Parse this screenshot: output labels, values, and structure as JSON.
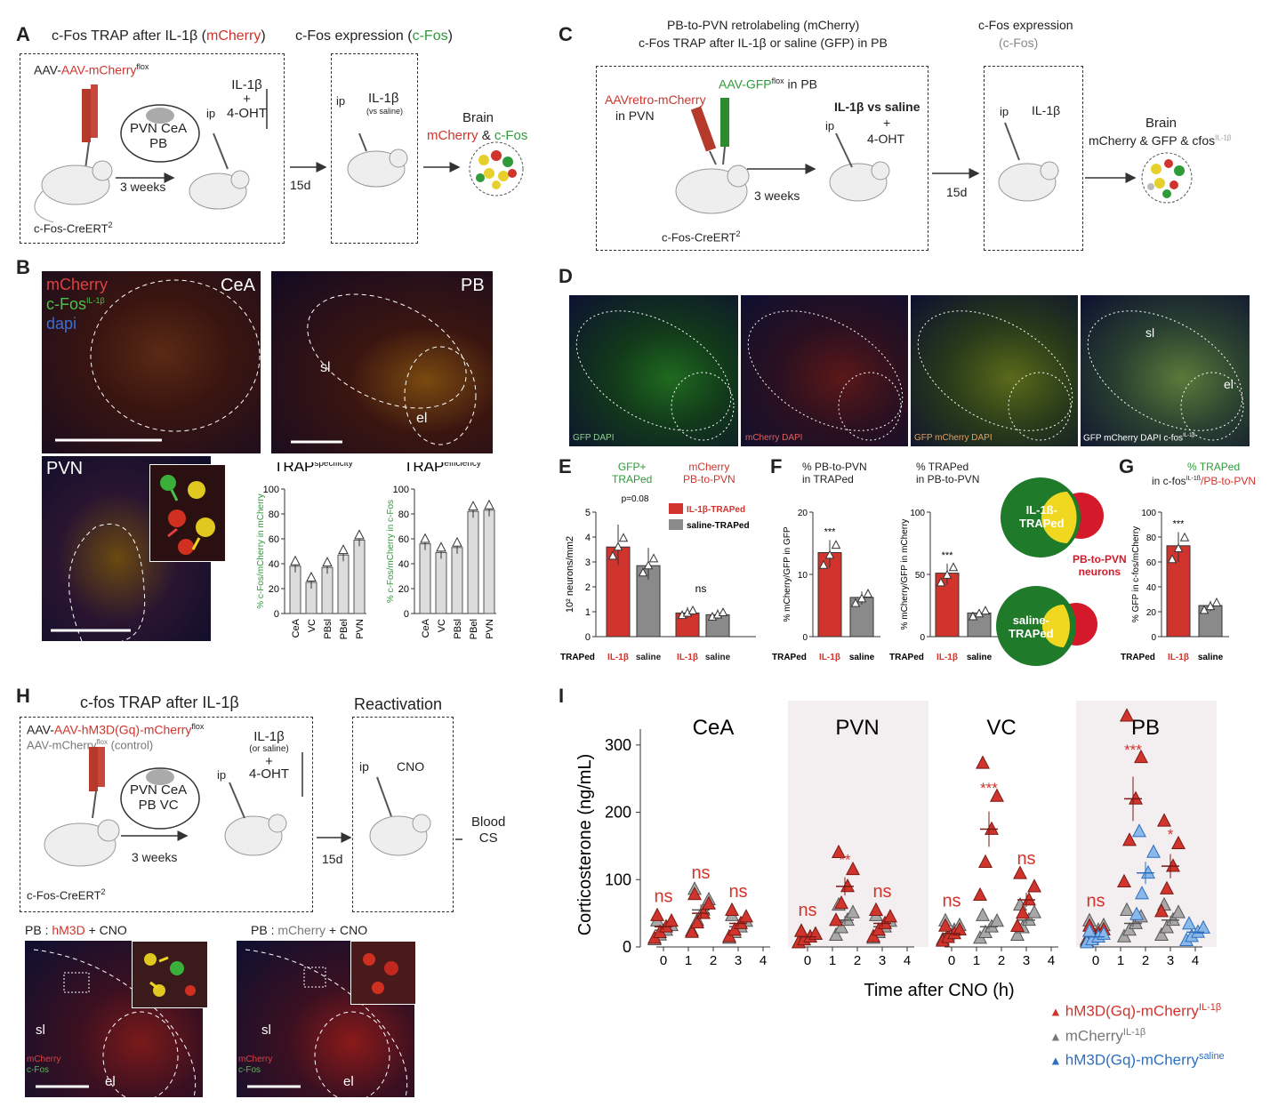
{
  "figure": {
    "panel_labels": [
      "A",
      "B",
      "C",
      "D",
      "E",
      "F",
      "G",
      "H",
      "I"
    ],
    "A": {
      "title_trap": "c-Fos TRAP after IL-1β (",
      "title_trap_red": "mCherry",
      "title_expr": "c-Fos expression (",
      "title_expr_green": "c-Fos",
      "virus": "AAV-mCherry",
      "virus_sup": "flox",
      "regions": [
        "PVN CeA",
        "PB"
      ],
      "treat": [
        "IL-1β",
        "+",
        "4-OHT"
      ],
      "ip": "ip",
      "inject2": "IL-1β",
      "inject2_sub": "(vs saline)",
      "weeks": "3 weeks",
      "days": "15d",
      "brain": "Brain",
      "brain_red": "mCherry",
      "brain_amp": "&",
      "brain_green": "c-Fos",
      "mouse_line": "c-Fos-CreERT",
      "mouse_sup": "2"
    },
    "B": {
      "legend": [
        "mCherry",
        "c-Fos",
        "IL-1β",
        "dapi"
      ],
      "regions": [
        "CeA",
        "PB",
        "PVN"
      ],
      "pb_sub": [
        "sl",
        "el"
      ],
      "spec_title": "TRAP",
      "spec_sup": "specificity",
      "eff_title": "TRAP",
      "eff_sup": "efficiency",
      "spec_ylabel": "% c-Fos/mCherry in mCherry",
      "eff_ylabel": "% c-Fos/mCherry in c-Fos"
    },
    "C": {
      "title1": "PB-to-PVN retrolabeling (mCherry)",
      "title2": "c-Fos TRAP after IL-1β or saline (GFP) in PB",
      "title3": "c-Fos expression",
      "title3b": "(c-Fos)",
      "retro": "AAVretro-mCherry",
      "retro2": "in PVN",
      "gfp": "AAV-GFP",
      "gfp_sup": "flox",
      "gfp_tail": " in PB",
      "treat": "IL-1β vs saline",
      "treat2": "+",
      "treat3": "4-OHT",
      "ip": "ip",
      "inject2": "IL-1β",
      "weeks": "3 weeks",
      "days": "15d",
      "brain": "Brain",
      "brain_line": "mCherry & GFP & cfos",
      "brain_sup": "IL-1β",
      "mouse_line": "c-Fos-CreERT",
      "mouse_sup": "2"
    },
    "D": {
      "captions": [
        "GFP DAPI",
        "mCherry DAPI",
        "GFP mCherry DAPI",
        "GFP mCherry DAPI c-fos"
      ],
      "caption_sup": "IL-1β",
      "sub": [
        "sl",
        "el"
      ]
    },
    "E": {
      "head1": [
        "GFP+",
        "TRAPed"
      ],
      "head2": [
        "mCherry",
        "PB-to-PVN"
      ],
      "ylabel": "10² neurons/mm2",
      "pval": "p=0.08",
      "ns": "ns",
      "legend": [
        "IL-1β-TRAPed",
        "saline-TRAPed"
      ],
      "xrow": [
        "TRAPed",
        "IL-1β",
        "saline",
        "IL-1β",
        "saline"
      ]
    },
    "F": {
      "head1": [
        "% PB-to-PVN",
        "in TRAPed"
      ],
      "head2": [
        "% TRAPed",
        "in PB-to-PVN"
      ],
      "ylabel1": "% mCherry/GFP in GFP",
      "ylabel2": "% mCherry/GFP in mCherry",
      "stars": "***",
      "xrow": [
        "TRAPed",
        "IL-1β",
        "saline"
      ],
      "venn": [
        "IL-1ß-",
        "TRAPed",
        "saline-",
        "TRAPed",
        "PB-to-PVN",
        "neurons"
      ]
    },
    "G": {
      "head": [
        "% TRAPed",
        "in c-fos",
        "IL-1ß",
        "/PB-to-PVN"
      ],
      "ylabel": "% GFP in c-fos/mCherry",
      "stars": "***",
      "xrow": [
        "TRAPed",
        "IL-1β",
        "saline"
      ]
    },
    "H": {
      "title": "c-fos TRAP after IL-1β",
      "title2": "Reactivation",
      "virus1": "AAV-hM3D(Gq)-mCherry",
      "virus_sup": "flox",
      "virus2": "AAV-mCherry",
      "virus2_tail": "(control)",
      "regions": [
        "PVN CeA",
        "PB VC"
      ],
      "treat": [
        "IL-1β",
        "(or saline)",
        "+",
        "4-OHT"
      ],
      "ip": "ip",
      "cno": "CNO",
      "weeks": "3 weeks",
      "days": "15d",
      "blood": [
        "Blood",
        "CS"
      ],
      "mouse_line": "c-Fos-CreERT",
      "mouse_sup": "2",
      "micro1": "PB : hM3D + CNO",
      "micro2": "PB : mCherry + CNO",
      "micro_legend": [
        "mCherry",
        "c-Fos"
      ],
      "sub": [
        "sl",
        "el"
      ]
    },
    "I": {
      "legend": [
        {
          "label": "hM3D(Gq)-mCherry",
          "sup": "IL-1β",
          "color": "#d0342c"
        },
        {
          "label": "mCherry",
          "sup": "IL-1β",
          "color": "#777777"
        },
        {
          "label": "hM3D(Gq)-mCherry",
          "sup": "saline",
          "color": "#2e6fbf"
        }
      ]
    }
  },
  "chart_data": [
    {
      "type": "bar",
      "panel": "B-specificity",
      "title": "TRAP specificity",
      "ylabel": "% c-Fos/mCherry in mCherry",
      "categories": [
        "CeA",
        "VC",
        "PBsl",
        "PBel",
        "PVN"
      ],
      "values": [
        38,
        25,
        37,
        47,
        59
      ],
      "ylim": [
        0,
        100
      ],
      "yticks": [
        0,
        20,
        40,
        60,
        80,
        100
      ]
    },
    {
      "type": "bar",
      "panel": "B-efficiency",
      "title": "TRAP efficiency",
      "ylabel": "% c-Fos/mCherry in c-Fos",
      "categories": [
        "CeA",
        "VC",
        "PBsl",
        "PBel",
        "PVN"
      ],
      "values": [
        56,
        49,
        53,
        82,
        83
      ],
      "ylim": [
        0,
        100
      ],
      "yticks": [
        0,
        20,
        40,
        60,
        80,
        100
      ]
    },
    {
      "type": "bar",
      "panel": "E",
      "ylabel": "10² neurons/mm2",
      "groups": [
        "GFP+ TRAPed",
        "mCherry PB-to-PVN"
      ],
      "series": [
        {
          "name": "IL-1β-TRAPed",
          "values": [
            3.6,
            0.95
          ],
          "color": "#d0342c"
        },
        {
          "name": "saline-TRAPed",
          "values": [
            2.85,
            0.88
          ],
          "color": "#8a8a8a"
        }
      ],
      "ylim": [
        0,
        5
      ],
      "yticks": [
        0,
        1,
        2,
        3,
        4,
        5
      ]
    },
    {
      "type": "bar",
      "panel": "F-left",
      "ylabel": "% mCherry/GFP in GFP",
      "categories": [
        "IL-1β",
        "saline"
      ],
      "values": [
        13.5,
        6.3
      ],
      "ylim": [
        0,
        20
      ],
      "yticks": [
        0,
        10,
        20
      ]
    },
    {
      "type": "bar",
      "panel": "F-right",
      "ylabel": "% mCherry/GFP in mCherry",
      "categories": [
        "IL-1β",
        "saline"
      ],
      "values": [
        51,
        19
      ],
      "ylim": [
        0,
        100
      ],
      "yticks": [
        0,
        50,
        100
      ]
    },
    {
      "type": "bar",
      "panel": "G",
      "ylabel": "% GFP in c-fos/mCherry",
      "categories": [
        "IL-1β",
        "saline"
      ],
      "values": [
        73,
        25
      ],
      "ylim": [
        0,
        100
      ],
      "yticks": [
        0,
        20,
        40,
        60,
        80,
        100
      ]
    },
    {
      "type": "scatter",
      "panel": "I",
      "ylabel": "Corticosterone (ng/mL)",
      "xlabel": "Time after CNO (h)",
      "ylim": [
        0,
        350
      ],
      "yticks": [
        0,
        100,
        200,
        300
      ],
      "xticks": [
        0,
        1,
        2,
        3,
        4
      ],
      "regions": [
        {
          "name": "CeA",
          "shaded": false,
          "significance": [
            "ns",
            "ns",
            "ns"
          ],
          "sig_x": [
            0,
            1.5,
            3
          ],
          "hM3D": {
            "x": [
              0,
              1.5,
              3
            ],
            "mean": [
              30,
              50,
              35
            ]
          },
          "mCherry": {
            "x": [
              0,
              1.5,
              3
            ],
            "mean": [
              25,
              55,
              30
            ]
          }
        },
        {
          "name": "PVN",
          "shaded": true,
          "significance": [
            "ns",
            "**",
            "ns"
          ],
          "sig_x": [
            0,
            1.5,
            3
          ],
          "hM3D": {
            "x": [
              0,
              1.5,
              3
            ],
            "mean": [
              15,
              90,
              35
            ]
          },
          "mCherry": {
            "x": [
              0,
              1.5,
              3
            ],
            "mean": [
              15,
              40,
              30
            ]
          }
        },
        {
          "name": "VC",
          "shaded": false,
          "significance": [
            "ns",
            "***",
            "ns"
          ],
          "sig_x": [
            0,
            1.5,
            3
          ],
          "hM3D": {
            "x": [
              0,
              1.5,
              3
            ],
            "mean": [
              20,
              175,
              70
            ]
          },
          "mCherry": {
            "x": [
              0,
              1.5,
              3
            ],
            "mean": [
              25,
              30,
              40
            ]
          }
        },
        {
          "name": "PB",
          "shaded": true,
          "significance": [
            "ns",
            "***",
            "*"
          ],
          "sig_x": [
            0,
            1.5,
            3
          ],
          "hM3D": {
            "x": [
              0,
              1.5,
              3
            ],
            "mean": [
              20,
              220,
              120
            ]
          },
          "mCherry": {
            "x": [
              0,
              1.5,
              3
            ],
            "mean": [
              25,
              35,
              40
            ]
          },
          "saline": {
            "x": [
              0,
              2,
              4
            ],
            "mean": [
              15,
              110,
              22
            ]
          }
        }
      ]
    }
  ]
}
